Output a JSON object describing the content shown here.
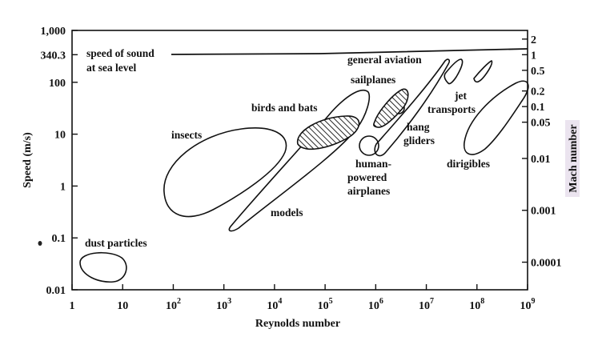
{
  "chart_data": {
    "type": "scatter",
    "title": "",
    "xlabel": "Reynolds number",
    "ylabel": "Speed (m/s)",
    "right_axis_label": "Mach number",
    "x_scale": "log",
    "y_scale": "log",
    "xlim": [
      1,
      1000000000
    ],
    "ylim": [
      0.01,
      1000
    ],
    "x_ticks": [
      {
        "value": 1,
        "base": "1",
        "exp": ""
      },
      {
        "value": 10,
        "base": "10",
        "exp": ""
      },
      {
        "value": 100,
        "base": "10",
        "exp": "2"
      },
      {
        "value": 1000,
        "base": "10",
        "exp": "3"
      },
      {
        "value": 10000,
        "base": "10",
        "exp": "4"
      },
      {
        "value": 100000,
        "base": "10",
        "exp": "5"
      },
      {
        "value": 1000000,
        "base": "10",
        "exp": "6"
      },
      {
        "value": 10000000,
        "base": "10",
        "exp": "7"
      },
      {
        "value": 100000000,
        "base": "10",
        "exp": "8"
      },
      {
        "value": 1000000000,
        "base": "10",
        "exp": "9"
      }
    ],
    "y_ticks": [
      {
        "value": 1000,
        "label": "1,000"
      },
      {
        "value": 340.3,
        "label": "340.3"
      },
      {
        "value": 100,
        "label": "100"
      },
      {
        "value": 10,
        "label": "10"
      },
      {
        "value": 1,
        "label": "1"
      },
      {
        "value": 0.1,
        "label": "0.1"
      },
      {
        "value": 0.01,
        "label": "0.01"
      }
    ],
    "mach_ticks": [
      {
        "mach": 2,
        "label": "2"
      },
      {
        "mach": 1,
        "label": "1"
      },
      {
        "mach": 0.5,
        "label": "0.5"
      },
      {
        "mach": 0.2,
        "label": "0.2"
      },
      {
        "mach": 0.1,
        "label": "0.1"
      },
      {
        "mach": 0.05,
        "label": "0.05"
      },
      {
        "mach": 0.01,
        "label": "0.01"
      },
      {
        "mach": 0.001,
        "label": "0.001"
      },
      {
        "mach": 0.0001,
        "label": "0.0001"
      }
    ],
    "speed_of_sound_line": {
      "speed": 340.3,
      "label_line1": "speed of sound",
      "label_line2": "at sea level"
    },
    "regions": [
      {
        "name": "dust particles",
        "re_range": [
          1.5,
          20
        ],
        "speed_range": [
          0.013,
          0.045
        ]
      },
      {
        "name": "insects",
        "re_range": [
          10,
          200000
        ],
        "speed_range": [
          0.6,
          15
        ]
      },
      {
        "name": "models",
        "re_range": [
          1000,
          700000
        ],
        "speed_range": [
          0.2,
          50
        ]
      },
      {
        "name": "birds and bats",
        "re_range": [
          30000,
          800000
        ],
        "speed_range": [
          6,
          20
        ]
      },
      {
        "name": "human-powered airplanes",
        "re_range": [
          800000,
          2000000
        ],
        "speed_range": [
          5,
          10
        ]
      },
      {
        "name": "hang gliders",
        "re_range": [
          2000000,
          5000000
        ],
        "speed_range": [
          6,
          30
        ]
      },
      {
        "name": "sailplanes",
        "re_range": [
          1000000,
          6000000
        ],
        "speed_range": [
          15,
          60
        ]
      },
      {
        "name": "general aviation",
        "re_range": [
          3000000,
          20000000
        ],
        "speed_range": [
          20,
          150
        ]
      },
      {
        "name": "jet transports",
        "re_range": [
          10000000,
          90000000
        ],
        "speed_range": [
          50,
          200
        ]
      },
      {
        "name": "dirigibles",
        "re_range": [
          70000000,
          700000000
        ],
        "speed_range": [
          5,
          100
        ]
      }
    ],
    "annotations": [
      {
        "id": "dust",
        "text": "dust particles"
      },
      {
        "id": "insects",
        "text": "insects"
      },
      {
        "id": "birds",
        "text": "birds and bats"
      },
      {
        "id": "models",
        "text": "models"
      },
      {
        "id": "hpa1",
        "text": "human-"
      },
      {
        "id": "hpa2",
        "text": "powered"
      },
      {
        "id": "hpa3",
        "text": "airplanes"
      },
      {
        "id": "hang1",
        "text": "hang"
      },
      {
        "id": "hang2",
        "text": "gliders"
      },
      {
        "id": "sail",
        "text": "sailplanes"
      },
      {
        "id": "ga",
        "text": "general aviation"
      },
      {
        "id": "jet1",
        "text": "jet"
      },
      {
        "id": "jet2",
        "text": "transports"
      },
      {
        "id": "dirig",
        "text": "dirigibles"
      }
    ],
    "grid": false,
    "legend": "none"
  }
}
